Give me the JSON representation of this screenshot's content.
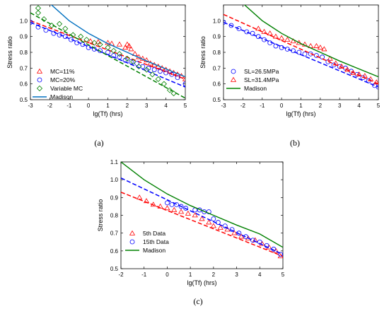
{
  "chart_data": [
    {
      "type": "scatter",
      "panel_label": "(a)",
      "xlabel": "lg(Tf) (hrs)",
      "ylabel": "Stress ratio",
      "xlim": [
        -3,
        5
      ],
      "ylim": [
        0.5,
        1.1
      ],
      "xticks": [
        -3,
        -2,
        -1,
        0,
        1,
        2,
        3,
        4,
        5
      ],
      "yticks": [
        0.5,
        0.6,
        0.7,
        0.8,
        0.9,
        1.0
      ],
      "grid": false,
      "legend_position": "bottom-left",
      "series": [
        {
          "name": "MC=11%",
          "kind": "points",
          "marker": "triangle",
          "color": "#ff0000",
          "points": [
            [
              0.1,
              0.87
            ],
            [
              0.5,
              0.865
            ],
            [
              1.0,
              0.86
            ],
            [
              1.2,
              0.855
            ],
            [
              1.6,
              0.85
            ],
            [
              1.9,
              0.83
            ],
            [
              2.0,
              0.85
            ],
            [
              2.1,
              0.84
            ],
            [
              2.2,
              0.82
            ],
            [
              2.4,
              0.79
            ],
            [
              2.6,
              0.77
            ],
            [
              2.8,
              0.76
            ],
            [
              3.0,
              0.75
            ],
            [
              3.2,
              0.73
            ],
            [
              3.4,
              0.72
            ],
            [
              3.6,
              0.71
            ],
            [
              3.8,
              0.7
            ],
            [
              4.0,
              0.69
            ],
            [
              4.2,
              0.68
            ],
            [
              4.4,
              0.67
            ],
            [
              4.6,
              0.66
            ],
            [
              4.8,
              0.65
            ],
            [
              5.0,
              0.63
            ]
          ]
        },
        {
          "name": "",
          "kind": "line",
          "dash": true,
          "color": "#ff0000",
          "points": [
            [
              -3,
              1.0
            ],
            [
              5,
              0.63
            ]
          ]
        },
        {
          "name": "MC=20%",
          "kind": "points",
          "marker": "circle",
          "color": "#0000ff",
          "points": [
            [
              -3.0,
              0.99
            ],
            [
              -2.6,
              0.96
            ],
            [
              -2.2,
              0.94
            ],
            [
              -1.8,
              0.92
            ],
            [
              -1.5,
              0.91
            ],
            [
              -1.2,
              0.9
            ],
            [
              -0.9,
              0.88
            ],
            [
              -0.6,
              0.86
            ],
            [
              -0.3,
              0.85
            ],
            [
              0.0,
              0.83
            ],
            [
              0.3,
              0.82
            ],
            [
              0.6,
              0.81
            ],
            [
              1.0,
              0.8
            ],
            [
              1.3,
              0.78
            ],
            [
              1.6,
              0.77
            ],
            [
              1.9,
              0.75
            ],
            [
              2.2,
              0.74
            ],
            [
              2.5,
              0.73
            ],
            [
              2.8,
              0.71
            ],
            [
              3.1,
              0.7
            ],
            [
              3.4,
              0.69
            ],
            [
              3.7,
              0.68
            ],
            [
              4.0,
              0.67
            ],
            [
              4.3,
              0.66
            ],
            [
              4.6,
              0.64
            ],
            [
              5.0,
              0.6
            ]
          ]
        },
        {
          "name": "",
          "kind": "line",
          "dash": true,
          "color": "#0000ff",
          "points": [
            [
              -3,
              0.99
            ],
            [
              5,
              0.58
            ]
          ]
        },
        {
          "name": "Variable MC",
          "kind": "points",
          "marker": "diamond",
          "color": "#008000",
          "points": [
            [
              -2.6,
              1.08
            ],
            [
              -2.6,
              1.05
            ],
            [
              -2.3,
              1.01
            ],
            [
              -1.9,
              0.97
            ],
            [
              -1.5,
              0.98
            ],
            [
              -1.2,
              0.95
            ],
            [
              -0.8,
              0.91
            ],
            [
              -0.4,
              0.9
            ],
            [
              -0.1,
              0.88
            ],
            [
              0.3,
              0.86
            ],
            [
              0.6,
              0.85
            ],
            [
              1.0,
              0.83
            ],
            [
              1.3,
              0.81
            ],
            [
              1.6,
              0.79
            ],
            [
              2.0,
              0.76
            ],
            [
              2.3,
              0.74
            ],
            [
              2.6,
              0.71
            ],
            [
              3.0,
              0.69
            ],
            [
              3.3,
              0.66
            ],
            [
              3.6,
              0.63
            ],
            [
              3.9,
              0.6
            ],
            [
              4.2,
              0.56
            ],
            [
              4.4,
              0.54
            ]
          ]
        },
        {
          "name": "",
          "kind": "line",
          "dash": true,
          "color": "#008000",
          "points": [
            [
              -3,
              1.05
            ],
            [
              5,
              0.51
            ]
          ]
        },
        {
          "name": "Madison",
          "kind": "line",
          "dash": false,
          "color": "#0070c0",
          "points": [
            [
              -2,
              1.11
            ],
            [
              -1,
              1.0
            ],
            [
              0,
              0.92
            ],
            [
              1,
              0.855
            ],
            [
              2,
              0.8
            ],
            [
              3,
              0.745
            ],
            [
              4,
              0.695
            ],
            [
              5,
              0.645
            ]
          ]
        }
      ]
    },
    {
      "type": "scatter",
      "panel_label": "(b)",
      "xlabel": "lg(Tf) (hrs)",
      "ylabel": "Stress ratio",
      "xlim": [
        -3,
        5
      ],
      "ylim": [
        0.5,
        1.1
      ],
      "xticks": [
        -3,
        -2,
        -1,
        0,
        1,
        2,
        3,
        4,
        5
      ],
      "yticks": [
        0.5,
        0.6,
        0.7,
        0.8,
        0.9,
        1.0
      ],
      "grid": false,
      "legend_position": "bottom-left",
      "series": [
        {
          "name": "SL=26.5MPa",
          "kind": "points",
          "marker": "circle",
          "color": "#0000ff",
          "points": [
            [
              -3.0,
              0.99
            ],
            [
              -2.6,
              0.97
            ],
            [
              -2.2,
              0.95
            ],
            [
              -1.8,
              0.93
            ],
            [
              -1.5,
              0.92
            ],
            [
              -1.2,
              0.9
            ],
            [
              -0.9,
              0.88
            ],
            [
              -0.6,
              0.86
            ],
            [
              -0.3,
              0.84
            ],
            [
              0.0,
              0.83
            ],
            [
              0.3,
              0.82
            ],
            [
              0.6,
              0.81
            ],
            [
              0.9,
              0.8
            ],
            [
              1.2,
              0.79
            ],
            [
              1.5,
              0.79
            ],
            [
              1.8,
              0.78
            ],
            [
              2.1,
              0.77
            ],
            [
              2.4,
              0.74
            ],
            [
              2.7,
              0.72
            ],
            [
              3.0,
              0.71
            ],
            [
              3.3,
              0.7
            ],
            [
              3.6,
              0.68
            ],
            [
              3.9,
              0.66
            ],
            [
              4.2,
              0.64
            ],
            [
              4.5,
              0.62
            ],
            [
              4.8,
              0.59
            ],
            [
              5.0,
              0.58
            ]
          ]
        },
        {
          "name": "",
          "kind": "line",
          "dash": true,
          "color": "#0000ff",
          "points": [
            [
              -3,
              0.99
            ],
            [
              5,
              0.58
            ]
          ]
        },
        {
          "name": "SL=31.4MPa",
          "kind": "points",
          "marker": "triangle",
          "color": "#ff0000",
          "points": [
            [
              -1.2,
              0.95
            ],
            [
              -0.9,
              0.93
            ],
            [
              -0.6,
              0.92
            ],
            [
              -0.3,
              0.9
            ],
            [
              0.0,
              0.89
            ],
            [
              0.3,
              0.88
            ],
            [
              0.6,
              0.87
            ],
            [
              0.9,
              0.86
            ],
            [
              1.2,
              0.85
            ],
            [
              1.5,
              0.84
            ],
            [
              1.8,
              0.84
            ],
            [
              2.0,
              0.83
            ],
            [
              2.2,
              0.82
            ],
            [
              2.5,
              0.76
            ],
            [
              2.8,
              0.73
            ],
            [
              3.1,
              0.71
            ],
            [
              3.4,
              0.69
            ],
            [
              3.7,
              0.67
            ],
            [
              4.0,
              0.66
            ],
            [
              4.3,
              0.65
            ],
            [
              4.6,
              0.63
            ],
            [
              4.9,
              0.61
            ]
          ]
        },
        {
          "name": "",
          "kind": "line",
          "dash": true,
          "color": "#ff0000",
          "points": [
            [
              -3,
              1.04
            ],
            [
              5,
              0.6
            ]
          ]
        },
        {
          "name": "Madison",
          "kind": "line",
          "dash": false,
          "color": "#008000",
          "points": [
            [
              -2,
              1.11
            ],
            [
              -1,
              1.0
            ],
            [
              0,
              0.92
            ],
            [
              1,
              0.855
            ],
            [
              2,
              0.8
            ],
            [
              3,
              0.745
            ],
            [
              4,
              0.695
            ],
            [
              5,
              0.645
            ]
          ]
        }
      ]
    },
    {
      "type": "scatter",
      "panel_label": "(c)",
      "xlabel": "lg(Tf) (hrs)",
      "ylabel": "Stress ratio",
      "xlim": [
        -2,
        5
      ],
      "ylim": [
        0.5,
        1.1
      ],
      "xticks": [
        -2,
        -1,
        0,
        1,
        2,
        3,
        4,
        5
      ],
      "yticks": [
        0.5,
        0.6,
        0.7,
        0.8,
        0.9,
        1.0,
        1.1
      ],
      "grid": false,
      "legend_position": "bottom-left",
      "series": [
        {
          "name": "5th Data",
          "kind": "points",
          "marker": "triangle",
          "color": "#ff0000",
          "points": [
            [
              -1.2,
              0.9
            ],
            [
              -0.9,
              0.88
            ],
            [
              -0.6,
              0.86
            ],
            [
              -0.3,
              0.85
            ],
            [
              0.0,
              0.84
            ],
            [
              0.3,
              0.83
            ],
            [
              0.6,
              0.82
            ],
            [
              0.9,
              0.81
            ],
            [
              1.2,
              0.8
            ],
            [
              1.5,
              0.78
            ],
            [
              1.8,
              0.76
            ],
            [
              2.0,
              0.74
            ],
            [
              2.3,
              0.73
            ],
            [
              2.6,
              0.72
            ],
            [
              2.9,
              0.7
            ],
            [
              3.2,
              0.68
            ],
            [
              3.5,
              0.67
            ],
            [
              3.8,
              0.66
            ],
            [
              4.1,
              0.64
            ],
            [
              4.4,
              0.62
            ],
            [
              4.7,
              0.6
            ],
            [
              4.9,
              0.57
            ]
          ]
        },
        {
          "name": "",
          "kind": "line",
          "dash": true,
          "color": "#ff0000",
          "points": [
            [
              -2,
              0.93
            ],
            [
              5,
              0.57
            ]
          ]
        },
        {
          "name": "15th Data",
          "kind": "points",
          "marker": "circle",
          "color": "#0000ff",
          "points": [
            [
              0.0,
              0.87
            ],
            [
              0.2,
              0.86
            ],
            [
              0.4,
              0.86
            ],
            [
              0.6,
              0.85
            ],
            [
              0.8,
              0.84
            ],
            [
              1.2,
              0.83
            ],
            [
              1.4,
              0.83
            ],
            [
              1.6,
              0.82
            ],
            [
              1.8,
              0.82
            ],
            [
              2.0,
              0.78
            ],
            [
              2.2,
              0.76
            ],
            [
              2.5,
              0.74
            ],
            [
              2.8,
              0.72
            ],
            [
              3.1,
              0.7
            ],
            [
              3.4,
              0.68
            ],
            [
              3.7,
              0.66
            ],
            [
              4.0,
              0.65
            ],
            [
              4.3,
              0.63
            ],
            [
              4.6,
              0.61
            ],
            [
              4.9,
              0.58
            ]
          ]
        },
        {
          "name": "",
          "kind": "line",
          "dash": true,
          "color": "#0000ff",
          "points": [
            [
              -2,
              1.01
            ],
            [
              5,
              0.58
            ]
          ]
        },
        {
          "name": "Madison",
          "kind": "line",
          "dash": false,
          "color": "#008000",
          "points": [
            [
              -2,
              1.1
            ],
            [
              -1,
              1.0
            ],
            [
              0,
              0.92
            ],
            [
              1,
              0.855
            ],
            [
              2,
              0.8
            ],
            [
              3,
              0.745
            ],
            [
              4,
              0.695
            ],
            [
              5,
              0.62
            ]
          ]
        }
      ]
    }
  ]
}
